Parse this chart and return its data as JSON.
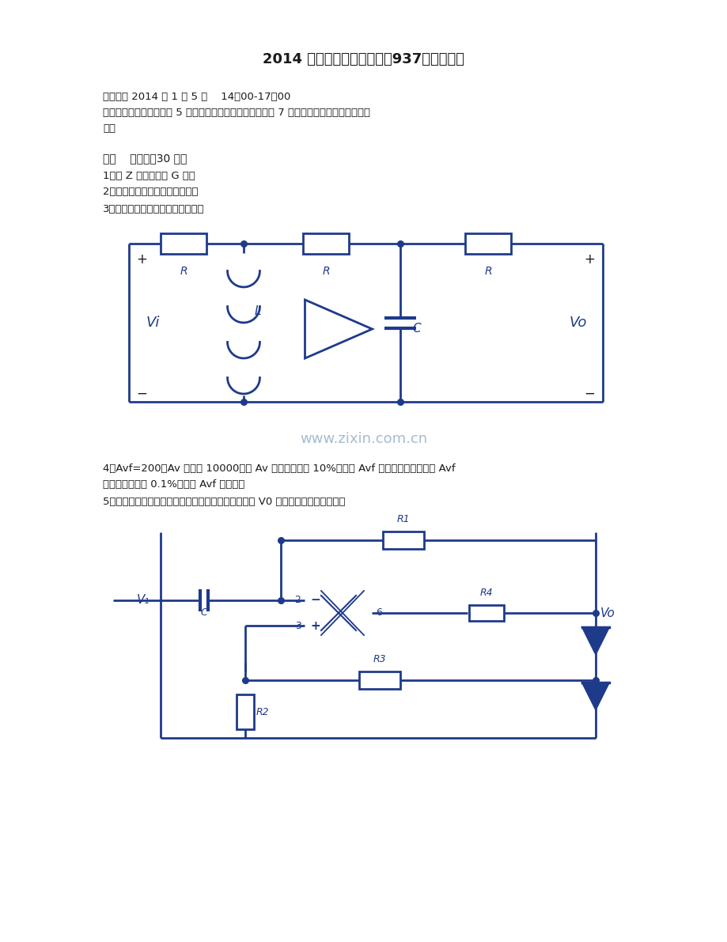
{
  "title": "2014 年北京大学电子线路（937）考研真题",
  "exam_line1": "考试时间 2014 年 1 月 5 日    14：00-17：00",
  "exam_line2": "共九道大题。第一道（含 5 道小题）为简单题和第六道（含 7 道小题）为填空题，其他均为",
  "exam_line3": "大题",
  "section_header": "一、    简答题（30 分）",
  "q1": "1、由 Z 参量推导出 G 参量",
  "q2": "2、画出二倍压电路，并简述原理",
  "q3": "3、简要说明图中电路是什么滤波器",
  "q4a": "4、Avf=200，Av 约等于 10000，求 Av 相对变化量为 10%时，求 Avf 相对变化量。若要求 Avf",
  "q4b": "的相对变化量为 0.1%时，求 Avf 的最大值",
  "q5": "5、如图所示，问电路的功能和各元件的作用。问输出 V0 频率提高，应该如何调整",
  "watermark": "www.zixin.com.cn",
  "bg": "#ffffff",
  "black": "#1a1a1a",
  "blue": "#1e3a8a",
  "lw": 2.0
}
